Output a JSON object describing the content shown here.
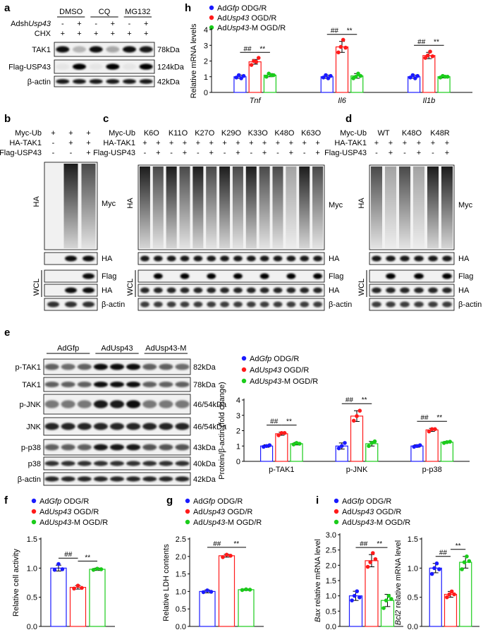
{
  "panels": {
    "a": {
      "letter": "a",
      "groups": [
        "DMSO",
        "CQ",
        "MG132"
      ],
      "rows": [
        {
          "label": "AdshUsp43",
          "signs": [
            "-",
            "+",
            "-",
            "+",
            "-",
            "+"
          ]
        },
        {
          "label": "CHX",
          "signs": [
            "+",
            "+",
            "+",
            "+",
            "+",
            "+"
          ]
        }
      ],
      "blots": [
        {
          "protein": "TAK1",
          "size": "78kDa",
          "intensity": [
            0.95,
            0.25,
            0.95,
            0.3,
            0.95,
            0.9
          ]
        },
        {
          "protein": "Flag-USP43",
          "size": "124kDa",
          "intensity": [
            0.05,
            1.0,
            0.05,
            1.0,
            0.05,
            1.0
          ]
        },
        {
          "protein": "β-actin",
          "size": "42kDa",
          "intensity": [
            0.9,
            0.9,
            0.9,
            0.9,
            0.9,
            0.9
          ]
        }
      ]
    },
    "b": {
      "letter": "b",
      "rows": [
        {
          "label": "Myc-Ub",
          "signs": [
            "+",
            "+",
            "+"
          ]
        },
        {
          "label": "HA-TAK1",
          "signs": [
            "-",
            "+",
            "+"
          ]
        },
        {
          "label": "Flag-USP43",
          "signs": [
            "-",
            "-",
            "+"
          ]
        }
      ],
      "ip_label": "HA",
      "wcl_label": "WCL",
      "smear_label": "Myc",
      "blots": [
        "HA",
        "Flag",
        "HA",
        "β-actin"
      ]
    },
    "c": {
      "letter": "c",
      "ub_label": "Myc-Ub",
      "ub_types": [
        "K6O",
        "K11O",
        "K27O",
        "K29O",
        "K33O",
        "K48O",
        "K63O"
      ],
      "rows": [
        {
          "label": "HA-TAK1",
          "signs": [
            "+",
            "+",
            "+",
            "+",
            "+",
            "+",
            "+",
            "+",
            "+",
            "+",
            "+",
            "+",
            "+",
            "+"
          ]
        },
        {
          "label": "Flag-USP43",
          "signs": [
            "-",
            "+",
            "-",
            "+",
            "-",
            "+",
            "-",
            "+",
            "-",
            "+",
            "-",
            "+",
            "-",
            "+"
          ]
        }
      ],
      "ip_label": "HA",
      "wcl_label": "WCL",
      "smear_label": "Myc",
      "blots": [
        "HA",
        "Flag",
        "HA",
        "β-actin"
      ]
    },
    "d": {
      "letter": "d",
      "ub_label": "Myc-Ub",
      "ub_types": [
        "WT",
        "K48O",
        "K48R"
      ],
      "rows": [
        {
          "label": "HA-TAK1",
          "signs": [
            "+",
            "+",
            "+",
            "+",
            "+",
            "+"
          ]
        },
        {
          "label": "Flag-USP43",
          "signs": [
            "-",
            "+",
            "-",
            "+",
            "-",
            "+"
          ]
        }
      ],
      "ip_label": "HA",
      "wcl_label": "WCL",
      "smear_label": "Myc",
      "blots": [
        "HA",
        "Flag",
        "HA",
        "β-actin"
      ]
    },
    "e": {
      "letter": "e",
      "groups": [
        "AdGfp",
        "AdUsp43",
        "AdUsp43-M"
      ],
      "blots": [
        {
          "protein": "p-TAK1",
          "size": "82kDa"
        },
        {
          "protein": "TAK1",
          "size": "78kDa"
        },
        {
          "protein": "p-JNK",
          "size": "46/54kDa"
        },
        {
          "protein": "JNK",
          "size": "46/54kDa"
        },
        {
          "protein": "p-p38",
          "size": "43kDa"
        },
        {
          "protein": "p38",
          "size": "40kDa"
        },
        {
          "protein": "β-actin",
          "size": "42kDa"
        }
      ]
    },
    "f": {
      "letter": "f"
    },
    "g": {
      "letter": "g"
    },
    "h": {
      "letter": "h"
    },
    "i": {
      "letter": "i"
    }
  },
  "legend": {
    "odg": {
      "prefix": "Ad",
      "gene": "Gfp",
      "suffix": " ODG/R"
    },
    "usp": {
      "prefix": "Ad",
      "gene": "Usp43",
      "suffix": " OGD/R"
    },
    "mut": {
      "prefix": "Ad",
      "gene": "Usp43",
      "suffix": "-M OGD/R"
    }
  },
  "colors": {
    "gfp": "#1a1aff",
    "usp": "#ff1a1a",
    "mut": "#1acc1a",
    "sig": "#000000"
  },
  "sig": {
    "hash": "##",
    "star": "**"
  },
  "chart_data": [
    {
      "panel": "h",
      "type": "bar",
      "ylabel": "Relative mRNA levels",
      "ylim": [
        0,
        4
      ],
      "yticks": [
        0,
        1,
        2,
        3,
        4
      ],
      "categories": [
        "Tnf",
        "Il6",
        "Il1b"
      ],
      "series": [
        {
          "name": "AdGfp ODG/R",
          "values": [
            1.0,
            1.0,
            1.0
          ],
          "err": [
            0.1,
            0.1,
            0.1
          ],
          "points": [
            [
              0.95,
              1.1,
              0.9,
              1.05
            ],
            [
              0.95,
              1.1,
              0.9,
              1.05
            ],
            [
              0.95,
              1.1,
              0.9,
              1.05
            ]
          ]
        },
        {
          "name": "AdUsp43 OGD/R",
          "values": [
            1.95,
            2.9,
            2.35
          ],
          "err": [
            0.15,
            0.35,
            0.2
          ],
          "points": [
            [
              1.75,
              2.0,
              1.95,
              2.2
            ],
            [
              2.55,
              2.9,
              3.35,
              2.85
            ],
            [
              2.2,
              2.35,
              2.6,
              2.3
            ]
          ]
        },
        {
          "name": "AdUsp43-M OGD/R",
          "values": [
            1.1,
            1.05,
            1.0
          ],
          "err": [
            0.1,
            0.15,
            0.08
          ],
          "points": [
            [
              1.0,
              1.2,
              1.1,
              1.1
            ],
            [
              0.9,
              1.0,
              1.2,
              1.05
            ],
            [
              0.95,
              1.05,
              1.0,
              1.0
            ]
          ]
        }
      ],
      "italic_categories": true,
      "legend": "top-left",
      "grid": false
    },
    {
      "panel": "e",
      "type": "bar",
      "ylabel": "Protein/β-actin (fold change)",
      "ylim": [
        0,
        4
      ],
      "yticks": [
        0,
        1,
        2,
        3,
        4
      ],
      "categories": [
        "p-TAK1",
        "p-JNK",
        "p-p38"
      ],
      "series": [
        {
          "name": "AdGfp ODG/R",
          "values": [
            1.0,
            1.0,
            1.0
          ],
          "err": [
            0.08,
            0.2,
            0.08
          ],
          "points": [
            [
              0.95,
              1.0,
              1.05
            ],
            [
              0.85,
              1.0,
              1.2
            ],
            [
              0.95,
              1.0,
              1.05
            ]
          ]
        },
        {
          "name": "AdUsp43 OGD/R",
          "values": [
            1.8,
            2.95,
            2.05
          ],
          "err": [
            0.1,
            0.35,
            0.1
          ],
          "points": [
            [
              1.7,
              1.85,
              1.85
            ],
            [
              2.65,
              2.95,
              3.3
            ],
            [
              1.95,
              2.1,
              2.1
            ]
          ]
        },
        {
          "name": "AdUsp43-M OGD/R",
          "values": [
            1.15,
            1.15,
            1.25
          ],
          "err": [
            0.08,
            0.15,
            0.05
          ],
          "points": [
            [
              1.1,
              1.2,
              1.15
            ],
            [
              1.0,
              1.2,
              1.3
            ],
            [
              1.2,
              1.25,
              1.28
            ]
          ]
        }
      ],
      "legend": "top-left",
      "grid": false
    },
    {
      "panel": "f",
      "type": "bar",
      "ylabel": "Relative cell activity",
      "ylim": [
        0,
        1.5
      ],
      "yticks": [
        0,
        0.5,
        1.0,
        1.5
      ],
      "categories": [
        ""
      ],
      "series": [
        {
          "name": "AdGfp ODG/R",
          "values": [
            1.0
          ],
          "err": [
            0.05
          ],
          "points": [
            [
              0.97,
              1.07,
              0.98
            ]
          ]
        },
        {
          "name": "AdUsp43 OGD/R",
          "values": [
            0.67
          ],
          "err": [
            0.03
          ],
          "points": [
            [
              0.65,
              0.7,
              0.66
            ]
          ]
        },
        {
          "name": "AdUsp43-M OGD/R",
          "values": [
            0.98
          ],
          "err": [
            0.02
          ],
          "points": [
            [
              0.97,
              0.99,
              0.98
            ]
          ]
        }
      ],
      "legend": "top",
      "grid": false
    },
    {
      "panel": "g",
      "type": "bar",
      "ylabel": "Relative LDH contents",
      "ylim": [
        0,
        2.5
      ],
      "yticks": [
        0,
        0.5,
        1.0,
        1.5,
        2.0,
        2.5
      ],
      "categories": [
        ""
      ],
      "series": [
        {
          "name": "AdGfp ODG/R",
          "values": [
            1.0
          ],
          "err": [
            0.04
          ],
          "points": [
            [
              0.98,
              1.03,
              0.99
            ]
          ]
        },
        {
          "name": "AdUsp43 OGD/R",
          "values": [
            2.02
          ],
          "err": [
            0.04
          ],
          "points": [
            [
              1.98,
              2.05,
              2.02
            ]
          ]
        },
        {
          "name": "AdUsp43-M OGD/R",
          "values": [
            1.05
          ],
          "err": [
            0.02
          ],
          "points": [
            [
              1.04,
              1.06,
              1.05
            ]
          ]
        }
      ],
      "legend": "top",
      "grid": false
    },
    {
      "panel": "i",
      "type": "bar",
      "ylabel_gene": "Bax",
      "ylabel": " relative mRNA level",
      "ylim": [
        0,
        3.0
      ],
      "yticks": [
        0,
        0.5,
        1.0,
        1.5,
        2.0,
        2.5,
        3.0
      ],
      "categories": [
        ""
      ],
      "series": [
        {
          "name": "AdGfp ODG/R",
          "values": [
            1.0
          ],
          "err": [
            0.15
          ],
          "points": [
            [
              0.85,
              1.0,
              1.15,
              0.95
            ]
          ]
        },
        {
          "name": "AdUsp43 OGD/R",
          "values": [
            2.15
          ],
          "err": [
            0.2
          ],
          "points": [
            [
              1.95,
              2.1,
              2.4,
              2.2
            ]
          ]
        },
        {
          "name": "AdUsp43-M OGD/R",
          "values": [
            0.85
          ],
          "err": [
            0.2
          ],
          "points": [
            [
              0.6,
              0.85,
              1.0,
              0.9
            ]
          ]
        }
      ],
      "legend": "top",
      "grid": false
    },
    {
      "panel": "i",
      "type": "bar",
      "ylabel_gene": "Bcl2",
      "ylabel": " relative mRNA level",
      "ylim": [
        0,
        1.5
      ],
      "yticks": [
        0,
        0.5,
        1.0,
        1.5
      ],
      "categories": [
        ""
      ],
      "series": [
        {
          "name": "AdGfp ODG/R",
          "values": [
            1.0
          ],
          "err": [
            0.08
          ],
          "points": [
            [
              0.9,
              1.0,
              1.08,
              0.98
            ]
          ]
        },
        {
          "name": "AdUsp43 OGD/R",
          "values": [
            0.55
          ],
          "err": [
            0.05
          ],
          "points": [
            [
              0.5,
              0.55,
              0.6,
              0.55
            ]
          ]
        },
        {
          "name": "AdUsp43-M OGD/R",
          "values": [
            1.1
          ],
          "err": [
            0.1
          ],
          "points": [
            [
              0.98,
              1.1,
              1.2,
              1.12
            ]
          ]
        }
      ],
      "legend": "top",
      "grid": false
    }
  ]
}
